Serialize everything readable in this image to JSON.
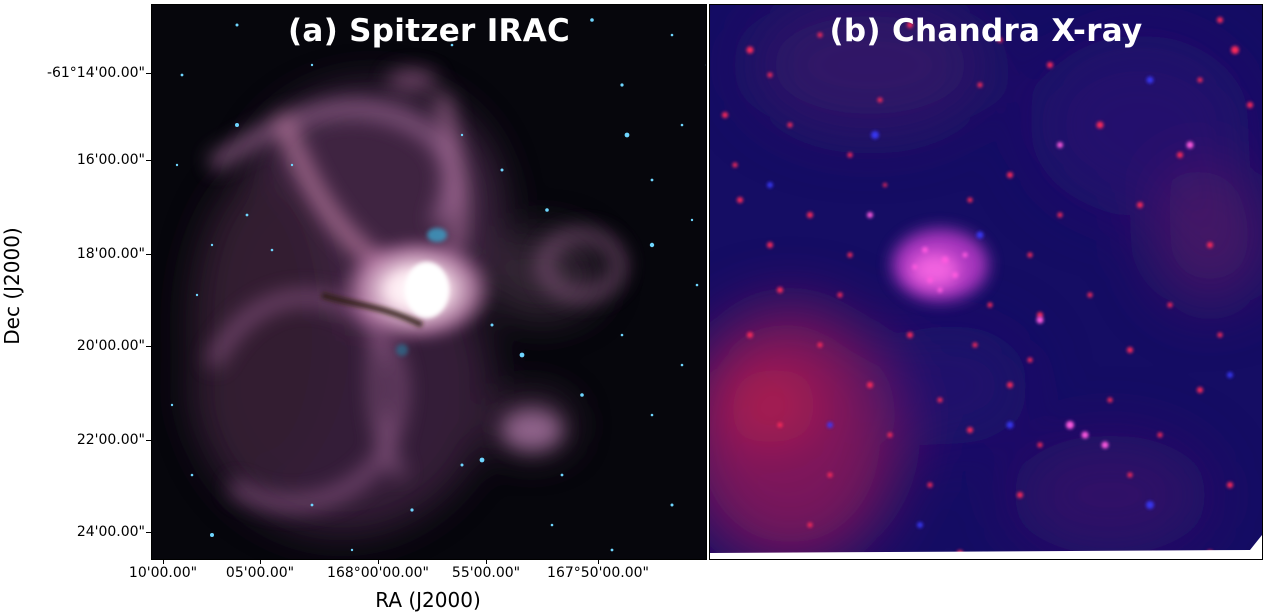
{
  "panels": [
    {
      "title": "(a) Spitzer IRAC"
    },
    {
      "title": "(b) Chandra X-ray"
    }
  ],
  "axes": {
    "ylabel": "Dec (J2000)",
    "xlabel": "RA (J2000)",
    "yticks": [
      "-61°14'00.00\"",
      "16'00.00\"",
      "18'00.00\"",
      "20'00.00\"",
      "22'00.00\"",
      "24'00.00\""
    ],
    "xticks": [
      "10'00.00\"",
      "05'00.00\"",
      "168°00'00.00\"",
      "55'00.00\"",
      "167°50'00.00\""
    ]
  },
  "colors": {
    "ir_nebula": "#c98ab8",
    "ir_core": "#fff6f8",
    "ir_stars": "#5fd0ff",
    "xray_background": "#120c62",
    "xray_sources": "#ff2a5a",
    "xray_cluster": "#ff4de0"
  }
}
